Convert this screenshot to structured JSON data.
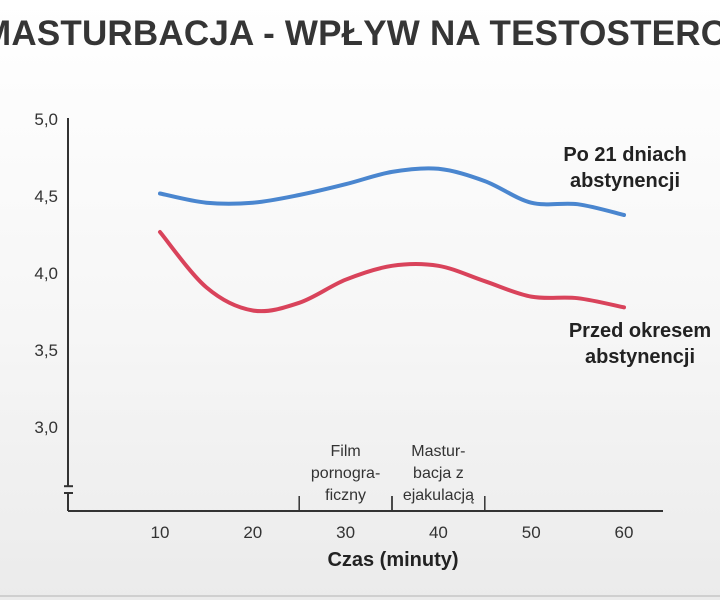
{
  "title": "MASTURBACJA - WPŁYW NA TESTOSTERON",
  "chart_data": {
    "type": "line",
    "xlabel": "Czas (minuty)",
    "ylabel": "",
    "x": [
      10,
      15,
      20,
      25,
      30,
      35,
      40,
      45,
      50,
      55,
      60
    ],
    "xticks": [
      10,
      20,
      30,
      40,
      50,
      60
    ],
    "yticks": [
      "5,0",
      "4,5",
      "4,0",
      "3,5",
      "3,0"
    ],
    "ytick_values": [
      5.0,
      4.5,
      4.0,
      3.5,
      3.0
    ],
    "ylim": [
      2.7,
      5.0
    ],
    "xlim": [
      6,
      64
    ],
    "grid": false,
    "series": [
      {
        "name": "Po 21 dniach abstynencji",
        "label_lines": [
          "Po 21 dniach",
          "abstynencji"
        ],
        "color": "#4a86cf",
        "values": [
          4.51,
          4.45,
          4.45,
          4.5,
          4.57,
          4.65,
          4.67,
          4.59,
          4.45,
          4.44,
          4.37
        ]
      },
      {
        "name": "Przed okresem abstynencji",
        "label_lines": [
          "Przed okresem",
          "abstynencji"
        ],
        "color": "#d9435b",
        "values": [
          4.26,
          3.9,
          3.75,
          3.8,
          3.95,
          4.04,
          4.04,
          3.94,
          3.84,
          3.83,
          3.77
        ]
      }
    ],
    "annotations": [
      {
        "lines": [
          "Film",
          "pornogra-",
          "ficzny"
        ],
        "x_from": 25,
        "x_to": 35
      },
      {
        "lines": [
          "Mastur-",
          "bacja z",
          "ejakulacją"
        ],
        "x_from": 35,
        "x_to": 45
      }
    ]
  }
}
